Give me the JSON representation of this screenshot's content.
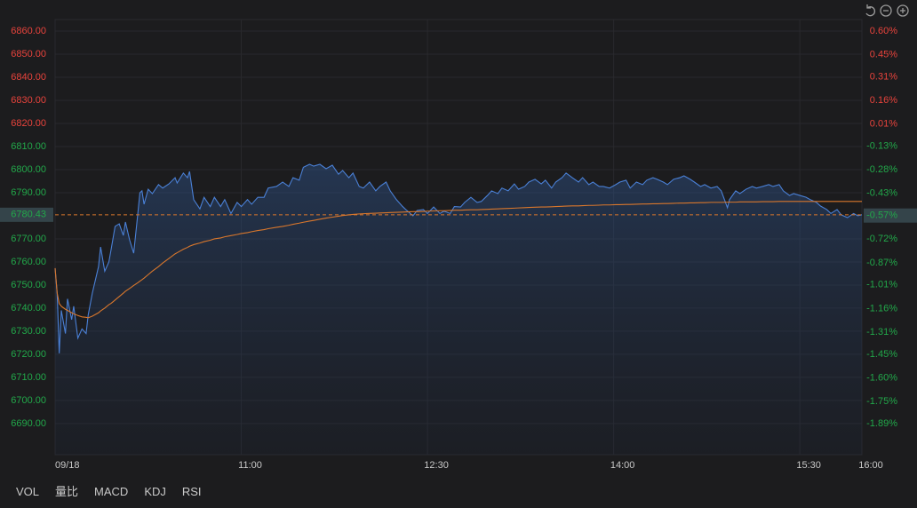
{
  "chart_data": {
    "type": "line",
    "x": [
      0,
      1,
      2,
      3,
      5,
      6,
      8,
      9,
      11,
      13,
      15,
      16,
      18,
      21,
      22,
      24,
      26,
      27,
      29,
      31,
      33,
      34,
      36,
      38,
      40,
      41,
      42,
      43,
      45,
      47,
      50,
      52,
      55,
      58,
      59,
      62,
      64,
      65,
      67,
      70,
      72,
      75,
      77,
      80,
      82,
      85,
      88,
      90,
      93,
      95,
      98,
      101,
      103,
      107,
      110,
      113,
      115,
      118,
      120,
      123,
      125,
      128,
      131,
      134,
      137,
      139,
      142,
      144,
      147,
      149,
      152,
      155,
      157,
      160,
      162,
      165,
      168,
      170,
      173,
      175,
      178,
      180,
      183,
      186,
      188,
      191,
      193,
      196,
      198,
      201,
      204,
      206,
      209,
      211,
      214,
      216,
      219,
      222,
      224,
      227,
      229,
      232,
      235,
      237,
      240,
      242,
      245,
      247,
      250,
      253,
      255,
      258,
      260,
      263,
      265,
      268,
      271,
      273,
      276,
      278,
      281,
      284,
      286,
      289,
      291,
      294,
      296,
      299,
      302,
      304,
      307,
      309,
      312,
      314,
      317,
      320,
      322,
      325,
      326,
      329,
      331,
      334,
      337,
      339,
      342,
      345,
      347,
      350,
      352,
      355,
      357,
      360,
      363,
      365,
      368,
      370,
      373,
      375,
      378,
      380,
      383,
      386,
      388,
      390
    ],
    "series": [
      {
        "color": "#4a80d6",
        "values": [
          6757.3,
          6746.5,
          6720.4,
          6739,
          6729,
          6744,
          6735,
          6740.8,
          6727,
          6731,
          6729,
          6737,
          6746.5,
          6758,
          6766.5,
          6756,
          6760,
          6765,
          6775.4,
          6776.5,
          6771.5,
          6777.3,
          6769.6,
          6763.8,
          6781,
          6790,
          6790.8,
          6785,
          6791.5,
          6789.6,
          6793.5,
          6792,
          6793.8,
          6796.5,
          6794.2,
          6798.5,
          6796.5,
          6799.2,
          6787,
          6783,
          6788,
          6784,
          6788,
          6784,
          6787,
          6781,
          6785.8,
          6784,
          6787,
          6785,
          6788,
          6788,
          6792,
          6792.7,
          6794.6,
          6792.7,
          6796.5,
          6795.4,
          6801,
          6802.3,
          6801.5,
          6802.3,
          6800.4,
          6801.9,
          6798,
          6799.6,
          6796.5,
          6798.5,
          6792.7,
          6792,
          6794.6,
          6790.8,
          6792.7,
          6794.6,
          6790.8,
          6787,
          6784,
          6782.3,
          6780,
          6782.3,
          6782.7,
          6781,
          6783.8,
          6781,
          6782,
          6781,
          6784,
          6783.8,
          6785.8,
          6788,
          6785.8,
          6786.2,
          6788.8,
          6790.8,
          6789.6,
          6792,
          6790.8,
          6793.8,
          6791.5,
          6792.7,
          6794.6,
          6795.8,
          6793.8,
          6795.4,
          6792,
          6794.6,
          6796.5,
          6798.5,
          6796.5,
          6794.6,
          6796.5,
          6793.5,
          6794.6,
          6792.7,
          6792.7,
          6792,
          6793.5,
          6794.6,
          6795.4,
          6792,
          6794.6,
          6793.5,
          6795.4,
          6796.5,
          6795.8,
          6794.6,
          6793.5,
          6795.8,
          6796.5,
          6797.3,
          6795.8,
          6794.6,
          6792.7,
          6793.5,
          6792,
          6792.7,
          6790.8,
          6783.5,
          6787,
          6790.8,
          6789.6,
          6791.5,
          6792.7,
          6792,
          6792.7,
          6793.5,
          6792.7,
          6793.5,
          6790.8,
          6788.8,
          6789.6,
          6788.8,
          6788,
          6787,
          6785.8,
          6784.2,
          6782.7,
          6781,
          6782.7,
          6780.4,
          6779.2,
          6781,
          6780,
          6780.43
        ]
      },
      {
        "color": "#d9772c",
        "values": [
          6757.3,
          6746.5,
          6742,
          6740.8,
          6739.5,
          6739,
          6738,
          6737.5,
          6736.8,
          6736.2,
          6736,
          6735.8,
          6736.5,
          6738,
          6738.8,
          6740,
          6741.5,
          6742,
          6743.5,
          6745,
          6746.5,
          6747.3,
          6748.5,
          6749.8,
          6751,
          6751.7,
          6752.3,
          6753,
          6754.5,
          6756,
          6758,
          6759.5,
          6761.5,
          6763.5,
          6764,
          6765.5,
          6766.3,
          6766.8,
          6767.5,
          6768.2,
          6768.8,
          6769.4,
          6770,
          6770.4,
          6770.9,
          6771.4,
          6771.9,
          6772.3,
          6772.7,
          6773.1,
          6773.6,
          6774,
          6774.4,
          6775,
          6775.4,
          6775.9,
          6776.3,
          6776.8,
          6777.2,
          6777.7,
          6778,
          6778.5,
          6779,
          6779.4,
          6779.8,
          6780.1,
          6780.4,
          6780.6,
          6780.8,
          6780.9,
          6781,
          6781.1,
          6781.2,
          6781.3,
          6781.4,
          6781.5,
          6781.6,
          6781.7,
          6781.8,
          6781.8,
          6781.9,
          6782,
          6782.1,
          6782.2,
          6782.2,
          6782.3,
          6782.4,
          6782.4,
          6782.5,
          6782.6,
          6782.6,
          6782.7,
          6782.8,
          6782.9,
          6783,
          6783.1,
          6783.2,
          6783.3,
          6783.4,
          6783.5,
          6783.6,
          6783.7,
          6783.8,
          6783.8,
          6783.9,
          6784,
          6784.1,
          6784.2,
          6784.3,
          6784.3,
          6784.4,
          6784.5,
          6784.5,
          6784.6,
          6784.7,
          6784.7,
          6784.8,
          6784.8,
          6784.9,
          6784.9,
          6785,
          6785.1,
          6785.1,
          6785.2,
          6785.2,
          6785.3,
          6785.3,
          6785.4,
          6785.5,
          6785.5,
          6785.6,
          6785.6,
          6785.7,
          6785.7,
          6785.8,
          6785.8,
          6785.8,
          6785.9,
          6785.9,
          6785.9,
          6786,
          6786,
          6786,
          6786,
          6786.1,
          6786.1,
          6786.1,
          6786.2,
          6786.2,
          6786.2,
          6786.2,
          6786.2,
          6786.2,
          6786.2,
          6786.2,
          6786.2,
          6786.2,
          6786.2,
          6786.2,
          6786.2,
          6786.2,
          6786.2,
          6786.2,
          6786.2
        ]
      }
    ],
    "xlim": [
      0,
      390
    ],
    "xticks": [
      {
        "value": 0,
        "label": "09/18"
      },
      {
        "value": 90,
        "label": "11:00"
      },
      {
        "value": 180,
        "label": "12:30"
      },
      {
        "value": 270,
        "label": "14:00"
      },
      {
        "value": 360,
        "label": "15:30"
      },
      {
        "value": 390,
        "label": "16:00"
      }
    ],
    "ylim": [
      6676.5,
      6865
    ],
    "yticks": [
      {
        "value": 6860,
        "label": "6860.00"
      },
      {
        "value": 6850,
        "label": "6850.00"
      },
      {
        "value": 6840,
        "label": "6840.00"
      },
      {
        "value": 6830,
        "label": "6830.00"
      },
      {
        "value": 6820,
        "label": "6820.00"
      },
      {
        "value": 6810,
        "label": "6810.00"
      },
      {
        "value": 6800,
        "label": "6800.00"
      },
      {
        "value": 6790,
        "label": "6790.00"
      },
      {
        "value": 6770,
        "label": "6770.00"
      },
      {
        "value": 6760,
        "label": "6760.00"
      },
      {
        "value": 6750,
        "label": "6750.00"
      },
      {
        "value": 6740,
        "label": "6740.00"
      },
      {
        "value": 6730,
        "label": "6730.00"
      },
      {
        "value": 6720,
        "label": "6720.00"
      },
      {
        "value": 6710,
        "label": "6710.00"
      },
      {
        "value": 6700,
        "label": "6700.00"
      },
      {
        "value": 6690,
        "label": "6690.00"
      }
    ],
    "y2lim": [
      -2.087,
      0.673
    ],
    "y2ticks": [
      {
        "value": 0.6,
        "label": "0.60%"
      },
      {
        "value": 0.45,
        "label": "0.45%"
      },
      {
        "value": 0.31,
        "label": "0.31%"
      },
      {
        "value": 0.16,
        "label": "0.16%"
      },
      {
        "value": 0.01,
        "label": "0.01%"
      },
      {
        "value": -0.13,
        "label": "-0.13%"
      },
      {
        "value": -0.28,
        "label": "-0.28%"
      },
      {
        "value": -0.43,
        "label": "-0.43%"
      },
      {
        "value": -0.57,
        "label": "-0.57%"
      },
      {
        "value": -0.72,
        "label": "-0.72%"
      },
      {
        "value": -0.87,
        "label": "-0.87%"
      },
      {
        "value": -1.01,
        "label": "-1.01%"
      },
      {
        "value": -1.16,
        "label": "-1.16%"
      },
      {
        "value": -1.31,
        "label": "-1.31%"
      },
      {
        "value": -1.45,
        "label": "-1.45%"
      },
      {
        "value": -1.6,
        "label": "-1.60%"
      },
      {
        "value": -1.75,
        "label": "-1.75%"
      },
      {
        "value": -1.89,
        "label": "-1.89%"
      }
    ],
    "last_price": 6780.43,
    "grid": true,
    "up_color": "#e8433c",
    "down_color": "#22a84a"
  },
  "indicator_tabs": [
    "VOL",
    "量比",
    "MACD",
    "KDJ",
    "RSI"
  ]
}
